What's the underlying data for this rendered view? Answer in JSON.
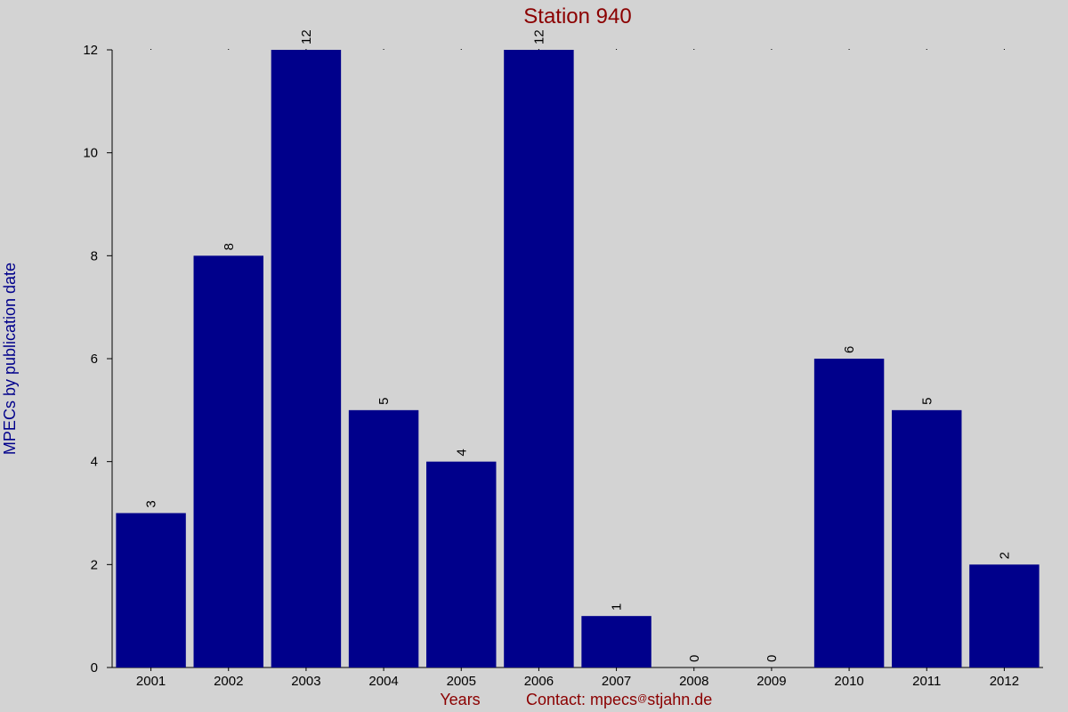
{
  "chart_data": {
    "type": "bar",
    "title": "Station 940",
    "xlabel": "Years",
    "ylabel": "MPECs by publication date",
    "footer": "Contact: mpecs",
    "footer_at": "@",
    "footer_rest": "stjahn.de",
    "categories": [
      "2001",
      "2002",
      "2003",
      "2004",
      "2005",
      "2006",
      "2007",
      "2008",
      "2009",
      "2010",
      "2011",
      "2012"
    ],
    "values": [
      3,
      8,
      12,
      5,
      4,
      12,
      1,
      0,
      0,
      6,
      5,
      2
    ],
    "ylim": [
      0,
      12
    ],
    "yticks": [
      0,
      2,
      4,
      6,
      8,
      10,
      12
    ],
    "grid": false,
    "colors": {
      "bar": "#00008b",
      "title": "#8b0000",
      "ylabel": "#00008b",
      "xlabel": "#8b0000",
      "footer": "#8b0000",
      "background": "#d3d3d3"
    }
  }
}
